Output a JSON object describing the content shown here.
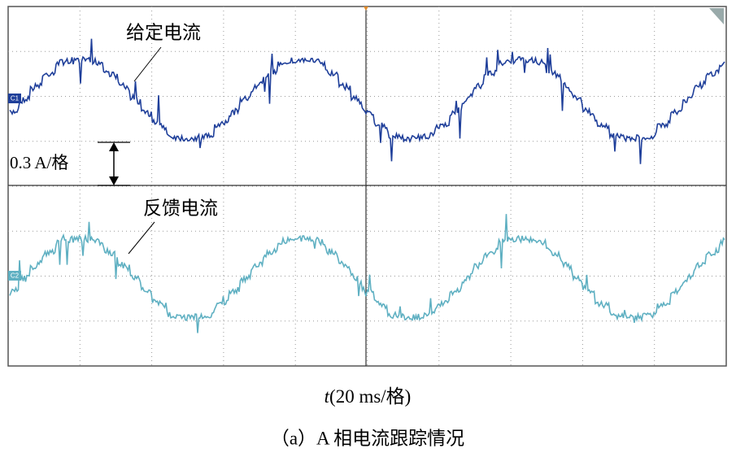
{
  "annotations": {
    "reference": "给定电流",
    "feedback": "反馈电流",
    "scale": "0.3 A/格",
    "channel1": "C1",
    "channel2": "C2"
  },
  "x_axis": {
    "symbol": "t",
    "unit": "(20 ms/格)"
  },
  "caption": "（a）A 相电流跟踪情况"
}
